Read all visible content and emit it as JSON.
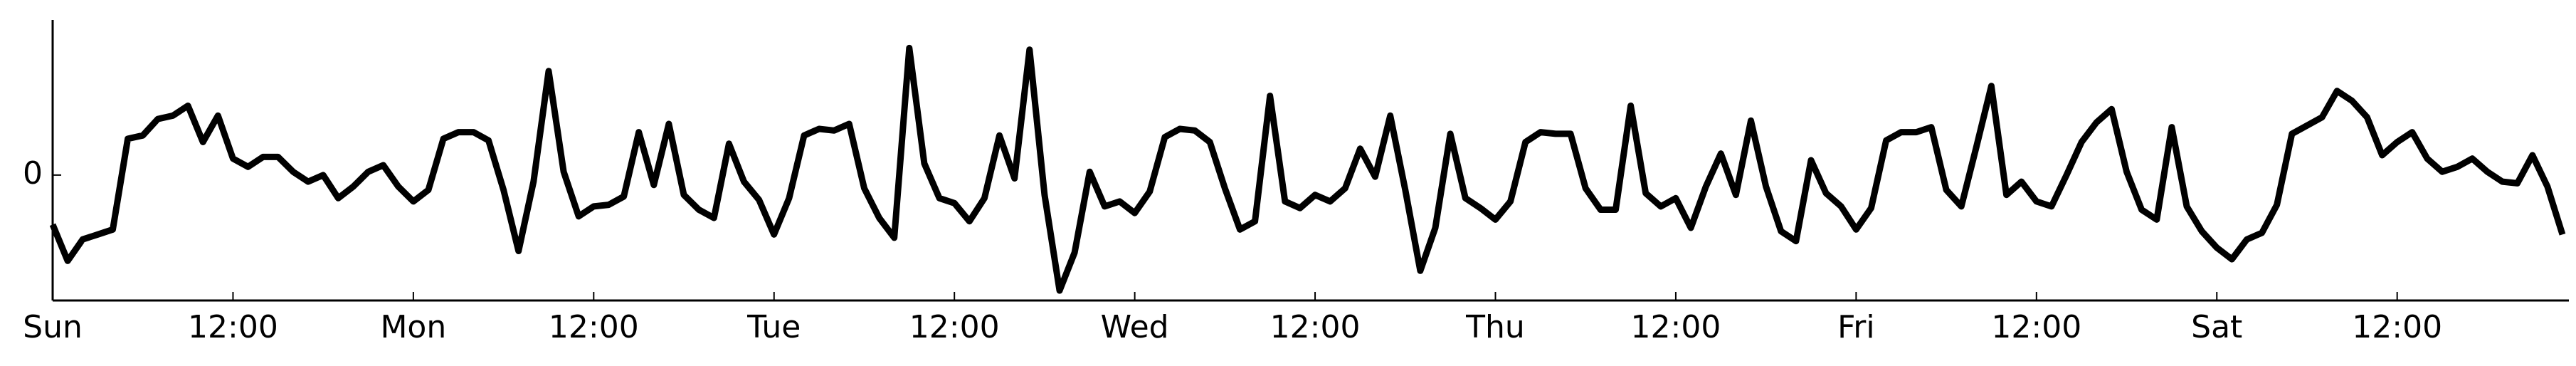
{
  "chart_data": {
    "type": "line",
    "x": [
      0,
      1,
      2,
      3,
      4,
      5,
      6,
      7,
      8,
      9,
      10,
      11,
      12,
      13,
      14,
      15,
      16,
      17,
      18,
      19,
      20,
      21,
      22,
      23,
      24,
      25,
      26,
      27,
      28,
      29,
      30,
      31,
      32,
      33,
      34,
      35,
      36,
      37,
      38,
      39,
      40,
      41,
      42,
      43,
      44,
      45,
      46,
      47,
      48,
      49,
      50,
      51,
      52,
      53,
      54,
      55,
      56,
      57,
      58,
      59,
      60,
      61,
      62,
      63,
      64,
      65,
      66,
      67,
      68,
      69,
      70,
      71,
      72,
      73,
      74,
      75,
      76,
      77,
      78,
      79,
      80,
      81,
      82,
      83,
      84,
      85,
      86,
      87,
      88,
      89,
      90,
      91,
      92,
      93,
      94,
      95,
      96,
      97,
      98,
      99,
      100,
      101,
      102,
      103,
      104,
      105,
      106,
      107,
      108,
      109,
      110,
      111,
      112,
      113,
      114,
      115,
      116,
      117,
      118,
      119,
      120,
      121,
      122,
      123,
      124,
      125,
      126,
      127,
      128,
      129,
      130,
      131,
      132,
      133,
      134,
      135,
      136,
      137,
      138,
      139,
      140,
      141,
      142,
      143,
      144,
      145,
      146,
      147,
      148,
      149,
      150,
      151,
      152,
      153,
      154,
      155,
      156,
      157,
      158,
      159,
      160,
      161,
      162,
      163,
      164,
      165,
      166,
      167
    ],
    "values": [
      -3.0,
      -5.2,
      -3.9,
      -3.6,
      -3.3,
      2.2,
      2.4,
      3.4,
      3.6,
      4.2,
      2.0,
      3.6,
      1.0,
      0.5,
      1.1,
      1.1,
      0.2,
      -0.4,
      0,
      -1.4,
      -0.7,
      0.2,
      0.6,
      -0.7,
      -1.6,
      -0.9,
      2.2,
      2.6,
      2.6,
      2.1,
      -0.9,
      -4.6,
      -0.4,
      6.3,
      0.2,
      -2.5,
      -1.9,
      -1.8,
      -1.3,
      2.6,
      -0.6,
      3.1,
      -1.2,
      -2.1,
      -2.6,
      1.9,
      -0.4,
      -1.5,
      -3.6,
      -1.4,
      2.4,
      2.8,
      2.7,
      3.1,
      -0.8,
      -2.6,
      -3.8,
      7.7,
      0.7,
      -1.4,
      -1.7,
      -2.8,
      -1.4,
      2.4,
      -0.2,
      7.6,
      -1.2,
      -7.0,
      -4.7,
      0.2,
      -1.9,
      -1.6,
      -2.3,
      -1.0,
      2.3,
      2.8,
      2.7,
      2.0,
      -0.8,
      -3.3,
      -2.8,
      4.8,
      -1.6,
      -2.0,
      -1.2,
      -1.6,
      -0.8,
      1.6,
      -0.1,
      3.6,
      -0.9,
      -5.8,
      -3.2,
      2.5,
      -1.4,
      -2.0,
      -2.7,
      -1.6,
      2.0,
      2.6,
      2.5,
      2.5,
      -0.8,
      -2.1,
      -2.1,
      4.2,
      -1.1,
      -1.9,
      -1.4,
      -3.2,
      -0.7,
      1.3,
      -1.2,
      3.3,
      -0.7,
      -3.4,
      -4.0,
      0.9,
      -1.1,
      -1.9,
      -3.3,
      -2.0,
      2.1,
      2.6,
      2.6,
      2.9,
      -0.9,
      -1.9,
      1.7,
      5.4,
      -1.2,
      -0.4,
      -1.6,
      -1.9,
      0,
      2.0,
      3.2,
      4.0,
      0.2,
      -2.1,
      -2.7,
      2.9,
      -1.9,
      -3.4,
      -4.4,
      -5.1,
      -3.9,
      -3.5,
      -1.8,
      2.5,
      3.0,
      3.5,
      5.1,
      4.5,
      3.5,
      1.2,
      2.0,
      2.6,
      1.0,
      0.2,
      0.5,
      1.0,
      0.2,
      -0.4,
      -0.5,
      1.2,
      -0.7,
      -3.6
    ],
    "color": "#000000",
    "xlim": [
      0,
      167
    ],
    "ylim": [
      -7.6,
      9.4
    ],
    "xticks": [
      {
        "value": 0,
        "label": "Sun"
      },
      {
        "value": 12,
        "label": "12:00"
      },
      {
        "value": 24,
        "label": "Mon"
      },
      {
        "value": 36,
        "label": "12:00"
      },
      {
        "value": 48,
        "label": "Tue"
      },
      {
        "value": 60,
        "label": "12:00"
      },
      {
        "value": 72,
        "label": "Wed"
      },
      {
        "value": 84,
        "label": "12:00"
      },
      {
        "value": 96,
        "label": "Thu"
      },
      {
        "value": 108,
        "label": "12:00"
      },
      {
        "value": 120,
        "label": "Fri"
      },
      {
        "value": 132,
        "label": "12:00"
      },
      {
        "value": 144,
        "label": "Sat"
      },
      {
        "value": 156,
        "label": "12:00"
      }
    ],
    "yticks": [
      0
    ],
    "grid": false
  }
}
